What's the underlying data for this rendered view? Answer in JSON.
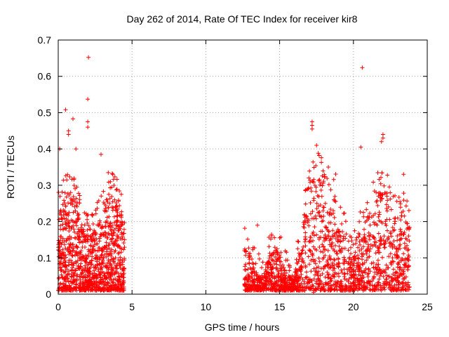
{
  "chart_data": {
    "type": "scatter",
    "title": "Day 262 of 2014, Rate Of TEC Index for receiver kir8",
    "xlabel": "GPS time / hours",
    "ylabel": "ROTI / TECUs",
    "xlim": [
      0,
      25
    ],
    "ylim": [
      0,
      0.7
    ],
    "xticks": [
      0,
      5,
      10,
      15,
      20,
      25
    ],
    "xtick_labels": [
      "0",
      "5",
      "10",
      "15",
      "20",
      "25"
    ],
    "yticks": [
      0,
      0.1,
      0.2,
      0.3,
      0.4,
      0.5,
      0.6,
      0.7
    ],
    "ytick_labels": [
      "0",
      "0.1",
      "0.2",
      "0.3",
      "0.4",
      "0.5",
      "0.6",
      "0.7"
    ],
    "grid": true,
    "marker": "+",
    "color": "#ff0000",
    "data_segments": [
      {
        "x_start": 0.0,
        "x_end": 4.5,
        "description": "dense cluster",
        "typical_min": 0.01,
        "typical_max": 0.33
      },
      {
        "x_start": 12.6,
        "x_end": 23.8,
        "description": "dense cluster",
        "typical_min": 0.01,
        "typical_max": 0.35
      }
    ],
    "series": [
      {
        "name": "ROTI",
        "notable_points": [
          {
            "x": 2.05,
            "y": 0.652
          },
          {
            "x": 2.0,
            "y": 0.537
          },
          {
            "x": 0.5,
            "y": 0.508
          },
          {
            "x": 1.0,
            "y": 0.483
          },
          {
            "x": 2.0,
            "y": 0.475
          },
          {
            "x": 2.0,
            "y": 0.46
          },
          {
            "x": 0.7,
            "y": 0.45
          },
          {
            "x": 0.7,
            "y": 0.44
          },
          {
            "x": 1.2,
            "y": 0.4
          },
          {
            "x": 0.1,
            "y": 0.4
          },
          {
            "x": 2.9,
            "y": 0.385
          },
          {
            "x": 3.7,
            "y": 0.33
          },
          {
            "x": 20.6,
            "y": 0.624
          },
          {
            "x": 17.2,
            "y": 0.475
          },
          {
            "x": 17.2,
            "y": 0.465
          },
          {
            "x": 17.2,
            "y": 0.455
          },
          {
            "x": 22.0,
            "y": 0.44
          },
          {
            "x": 22.0,
            "y": 0.43
          },
          {
            "x": 21.9,
            "y": 0.42
          },
          {
            "x": 20.5,
            "y": 0.405
          },
          {
            "x": 17.5,
            "y": 0.41
          },
          {
            "x": 18.3,
            "y": 0.35
          },
          {
            "x": 23.4,
            "y": 0.33
          },
          {
            "x": 13.5,
            "y": 0.19
          },
          {
            "x": 15.0,
            "y": 0.155
          },
          {
            "x": 17.3,
            "y": 0.005
          }
        ]
      }
    ]
  }
}
